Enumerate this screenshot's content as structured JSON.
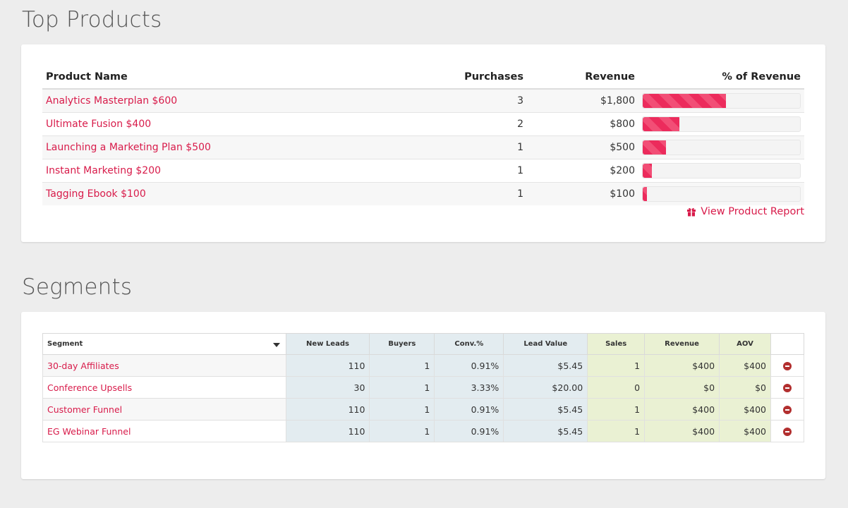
{
  "top_products": {
    "title": "Top Products",
    "columns": [
      "Product Name",
      "Purchases",
      "Revenue",
      "% of Revenue"
    ],
    "rows": [
      {
        "name": "Analytics Masterplan $600",
        "purchases": "3",
        "revenue": "$1,800",
        "revenue_pct": 0.53
      },
      {
        "name": "Ultimate Fusion $400",
        "purchases": "2",
        "revenue": "$800",
        "revenue_pct": 0.235
      },
      {
        "name": "Launching a Marketing Plan $500",
        "purchases": "1",
        "revenue": "$500",
        "revenue_pct": 0.147
      },
      {
        "name": "Instant Marketing $200",
        "purchases": "1",
        "revenue": "$200",
        "revenue_pct": 0.059
      },
      {
        "name": "Tagging Ebook $100",
        "purchases": "1",
        "revenue": "$100",
        "revenue_pct": 0.029
      }
    ],
    "report_link": "View Product Report",
    "report_icon": "gift-icon",
    "accent_color": "#d81b4a"
  },
  "segments": {
    "title": "Segments",
    "columns": [
      "Segment",
      "New Leads",
      "Buyers",
      "Conv.%",
      "Lead Value",
      "Sales",
      "Revenue",
      "AOV"
    ],
    "rows": [
      {
        "segment": "30-day Affiliates",
        "new_leads": "110",
        "buyers": "1",
        "conv": "0.91%",
        "lead_value": "$5.45",
        "sales": "1",
        "revenue": "$400",
        "aov": "$400"
      },
      {
        "segment": "Conference Upsells",
        "new_leads": "30",
        "buyers": "1",
        "conv": "3.33%",
        "lead_value": "$20.00",
        "sales": "0",
        "revenue": "$0",
        "aov": "$0"
      },
      {
        "segment": "Customer Funnel",
        "new_leads": "110",
        "buyers": "1",
        "conv": "0.91%",
        "lead_value": "$5.45",
        "sales": "1",
        "revenue": "$400",
        "aov": "$400"
      },
      {
        "segment": "EG Webinar Funnel",
        "new_leads": "110",
        "buyers": "1",
        "conv": "0.91%",
        "lead_value": "$5.45",
        "sales": "1",
        "revenue": "$400",
        "aov": "$400"
      }
    ],
    "remove_icon": "minus-circle-icon"
  }
}
